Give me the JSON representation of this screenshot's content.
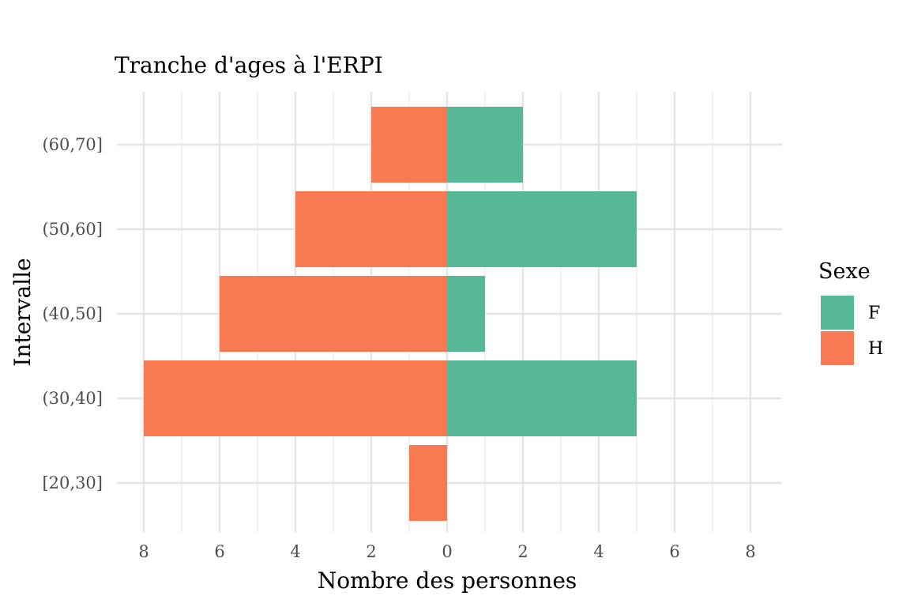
{
  "chart_data": {
    "type": "bar",
    "orientation": "horizontal",
    "title": "Tranche d'ages à l'ERPI",
    "xlabel": "Nombre des personnes",
    "ylabel": "Intervalle",
    "categories": [
      "[20,30]",
      "(30,40]",
      "(40,50]",
      "(50,60]",
      "(60,70]"
    ],
    "series": [
      {
        "name": "F",
        "values": [
          0,
          5,
          1,
          5,
          2
        ],
        "color": "#56B894",
        "direction": "right"
      },
      {
        "name": "H",
        "values": [
          1,
          8,
          6,
          4,
          2
        ],
        "color": "#F77A52",
        "direction": "left"
      }
    ],
    "xticks": [
      -8,
      -6,
      -4,
      -2,
      0,
      2,
      4,
      6,
      8
    ],
    "xtick_labels": [
      "8",
      "6",
      "4",
      "2",
      "0",
      "2",
      "4",
      "6",
      "8"
    ],
    "xlim": [
      -8,
      8
    ],
    "grid": true,
    "legend": {
      "title": "Sexe",
      "position": "right"
    }
  }
}
